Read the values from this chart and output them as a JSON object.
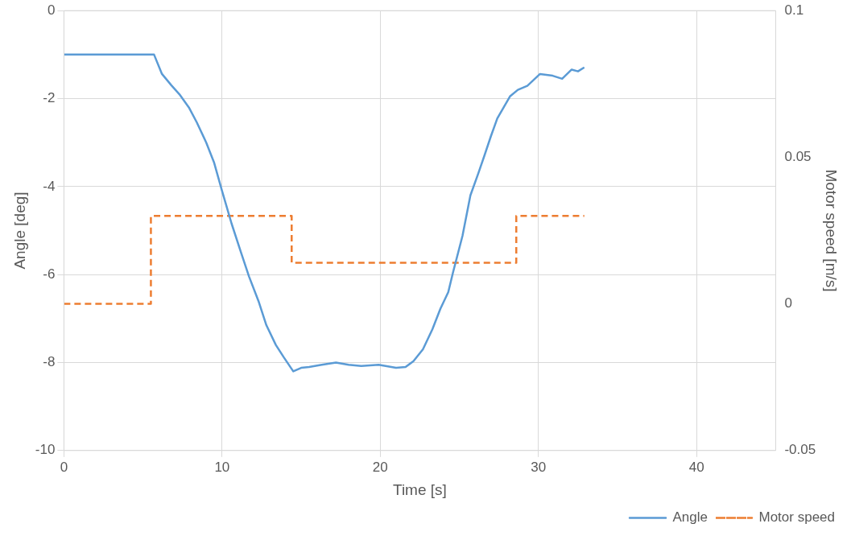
{
  "chart_data": {
    "type": "line",
    "xlabel": "Time [s]",
    "ylabel": "Angle [deg]",
    "y2label": "Motor speed [m/s]",
    "xlim": [
      0,
      45
    ],
    "xticks": [
      0,
      10,
      20,
      30,
      40
    ],
    "ylim": [
      -10,
      0
    ],
    "yticks": [
      -10,
      -8,
      -6,
      -4,
      -2,
      0
    ],
    "y2lim": [
      -0.05,
      0.1
    ],
    "y2ticks": [
      -0.05,
      0,
      0.05,
      0.1
    ],
    "grid": true,
    "legend": "bottom right",
    "marker": "none",
    "series": [
      {
        "name": "Angle",
        "color": "#5b9bd5",
        "line_style": "solid",
        "x": [
          0,
          2,
          4,
          5.7,
          6.2,
          6.8,
          7.3,
          7.9,
          8.4,
          9.0,
          9.5,
          10,
          10.6,
          11.2,
          11.7,
          12.3,
          12.8,
          13.4,
          13.9,
          14.5,
          15.0,
          15.5,
          16.3,
          17.2,
          18.0,
          18.8,
          19.9,
          21,
          21.6,
          22.1,
          22.7,
          23.3,
          23.8,
          24.3,
          24.6,
          25.2,
          25.7,
          26.2,
          26.6,
          27.0,
          27.4,
          28.2,
          28.7,
          29.3,
          30.1,
          30.9,
          31.5,
          32.1,
          32.5,
          32.9
        ],
        "values": [
          -1,
          -1,
          -1,
          -1,
          -1.44,
          -1.7,
          -1.9,
          -2.2,
          -2.54,
          -3.0,
          -3.46,
          -4.1,
          -4.84,
          -5.5,
          -6.04,
          -6.6,
          -7.15,
          -7.6,
          -7.88,
          -8.2,
          -8.12,
          -8.1,
          -8.05,
          -8.0,
          -8.05,
          -8.08,
          -8.05,
          -8.12,
          -8.1,
          -7.97,
          -7.7,
          -7.24,
          -6.78,
          -6.4,
          -5.95,
          -5.12,
          -4.2,
          -3.7,
          -3.28,
          -2.85,
          -2.45,
          -1.95,
          -1.8,
          -1.71,
          -1.44,
          -1.48,
          -1.55,
          -1.34,
          -1.38,
          -1.29
        ]
      },
      {
        "name": "Motor speed",
        "type": "step",
        "axis": "y2",
        "color": "#ed7d31",
        "line_style": "dashed",
        "x": [
          0,
          5.5,
          14.4,
          28.6,
          32.9
        ],
        "values": [
          0,
          0.03,
          0.014,
          0.03,
          0.03
        ]
      }
    ]
  }
}
